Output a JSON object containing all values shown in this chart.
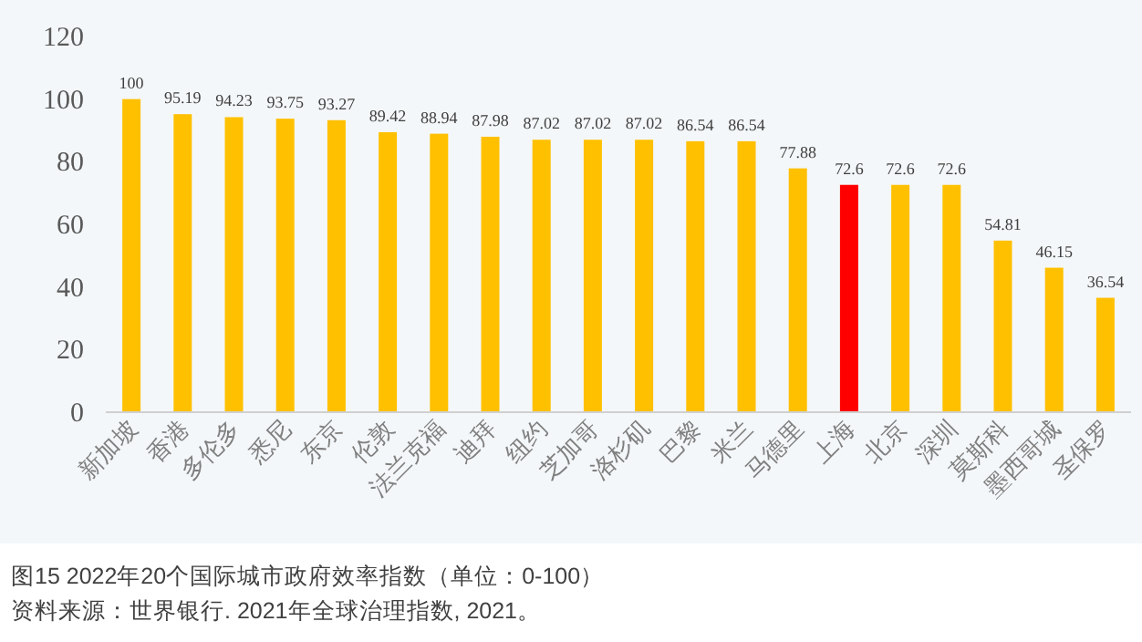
{
  "chart_data": {
    "type": "bar",
    "categories": [
      "新加坡",
      "香港",
      "多伦多",
      "悉尼",
      "东京",
      "伦敦",
      "法兰克福",
      "迪拜",
      "纽约",
      "芝加哥",
      "洛杉矶",
      "巴黎",
      "米兰",
      "马德里",
      "上海",
      "北京",
      "深圳",
      "莫斯科",
      "墨西哥城",
      "圣保罗"
    ],
    "values": [
      100,
      95.19,
      94.23,
      93.75,
      93.27,
      89.42,
      88.94,
      87.98,
      87.02,
      87.02,
      87.02,
      86.54,
      86.54,
      77.88,
      72.6,
      72.6,
      72.6,
      54.81,
      46.15,
      36.54
    ],
    "colors": [
      "#ffc000",
      "#ffc000",
      "#ffc000",
      "#ffc000",
      "#ffc000",
      "#ffc000",
      "#ffc000",
      "#ffc000",
      "#ffc000",
      "#ffc000",
      "#ffc000",
      "#ffc000",
      "#ffc000",
      "#ffc000",
      "#ff0000",
      "#ffc000",
      "#ffc000",
      "#ffc000",
      "#ffc000",
      "#ffc000"
    ],
    "ylim": [
      0,
      120
    ],
    "yticks": [
      0,
      20,
      40,
      60,
      80,
      100,
      120
    ],
    "data_labels": true,
    "grid": false,
    "annotations": [
      "图15  2022年20个国际城市政府效率指数（单位：0-100）",
      "资料来源：世界银行. 2021年全球治理指数, 2021。"
    ]
  }
}
